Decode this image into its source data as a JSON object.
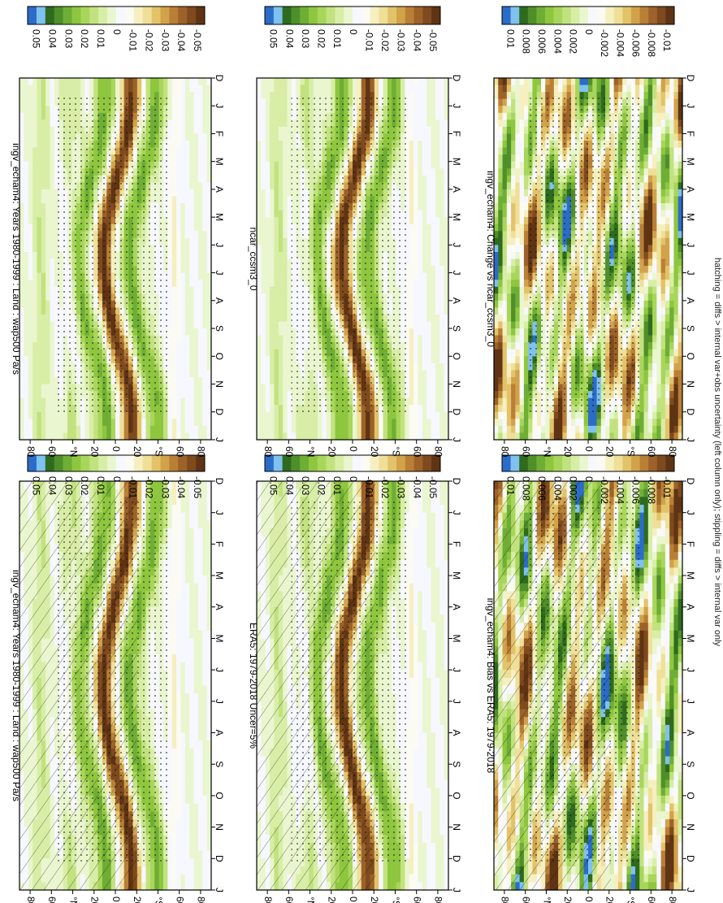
{
  "figure": {
    "footer": "hatching = diffs > internal var+obs uncertainty (left column only); stippling = diffs > internal var only"
  },
  "palettes": {
    "brbg": [
      "#2b6cc8",
      "#7fc1ef",
      "#2e6b1f",
      "#4f8f2a",
      "#6fae35",
      "#8ec63f",
      "#a8d65b",
      "#c2e27f",
      "#d8eea7",
      "#eaf6cf",
      "#f7f8ff",
      "#fbfbf4",
      "#f6efc0",
      "#efdf98",
      "#e3c36a",
      "#d2a24a",
      "#b97f35",
      "#9c6229",
      "#7e4a1e",
      "#5e3414"
    ]
  },
  "chart_data": [
    {
      "type": "heatmap",
      "title": "ingv_echam4: Years 1980-1999 : Land : wap500 Pa/s",
      "x_ticks": [
        "D",
        "J",
        "F",
        "M",
        "A",
        "M",
        "J",
        "J",
        "A",
        "S",
        "O",
        "N",
        "D",
        "J"
      ],
      "y_ticks": [
        "80",
        "60",
        "°N",
        "20",
        "0",
        "20",
        "°S",
        "60",
        "80"
      ],
      "colorbar_ticks": [
        "0.05",
        "0.04",
        "0.03",
        "0.02",
        "0.01",
        "0",
        "-0.01",
        "-0.02",
        "-0.03",
        "-0.04",
        "-0.05"
      ],
      "field": "climatology",
      "hatching": true,
      "stippling": true
    },
    {
      "type": "heatmap",
      "title": "ingv_echam4: Years 1980-1999 : Land : wap500 Pa/s",
      "x_ticks": [
        "D",
        "J",
        "F",
        "M",
        "A",
        "M",
        "J",
        "J",
        "A",
        "S",
        "O",
        "N",
        "D",
        "J"
      ],
      "y_ticks": [
        "80",
        "60",
        "°N",
        "20",
        "0",
        "20",
        "°S",
        "60",
        "80"
      ],
      "colorbar_ticks": [
        "0.05",
        "0.04",
        "0.03",
        "0.02",
        "0.01",
        "0",
        "-0.01",
        "-0.02",
        "-0.03",
        "-0.04",
        "-0.05"
      ],
      "field": "climatology",
      "hatching": false,
      "stippling": true
    },
    {
      "type": "heatmap",
      "title": "ERA5: 1979-2018 Uncer=5%",
      "x_ticks": [
        "D",
        "J",
        "F",
        "M",
        "A",
        "M",
        "J",
        "J",
        "A",
        "S",
        "O",
        "N",
        "D",
        "J"
      ],
      "y_ticks": [
        "80",
        "60",
        "°N",
        "20",
        "0",
        "20",
        "°S",
        "60",
        "80"
      ],
      "colorbar_ticks": [
        "0.05",
        "0.04",
        "0.03",
        "0.02",
        "0.01",
        "0",
        "-0.01",
        "-0.02",
        "-0.03",
        "-0.04",
        "-0.05"
      ],
      "field": "climatology",
      "hatching": true,
      "stippling": true
    },
    {
      "type": "heatmap",
      "title": "ncar_ccsm3_0",
      "x_ticks": [
        "D",
        "J",
        "F",
        "M",
        "A",
        "M",
        "J",
        "J",
        "A",
        "S",
        "O",
        "N",
        "D",
        "J"
      ],
      "y_ticks": [
        "80",
        "60",
        "°N",
        "20",
        "0",
        "20",
        "°S",
        "60",
        "80"
      ],
      "colorbar_ticks": [
        "0.05",
        "0.04",
        "0.03",
        "0.02",
        "0.01",
        "0",
        "-0.01",
        "-0.02",
        "-0.03",
        "-0.04",
        "-0.05"
      ],
      "field": "climatology",
      "hatching": false,
      "stippling": true
    },
    {
      "type": "heatmap",
      "title": "ingv_echam4: Bias vs ERA5: 1979-2018",
      "x_ticks": [
        "D",
        "J",
        "F",
        "M",
        "A",
        "M",
        "J",
        "J",
        "A",
        "S",
        "O",
        "N",
        "D",
        "J"
      ],
      "y_ticks": [
        "80",
        "60",
        "°N",
        "20",
        "0",
        "20",
        "°S",
        "60",
        "80"
      ],
      "colorbar_ticks": [
        "0.01",
        "0.008",
        "0.006",
        "0.004",
        "0.002",
        "0",
        "-0.002",
        "-0.004",
        "-0.006",
        "-0.008",
        "-0.01"
      ],
      "field": "difference",
      "hatching": true,
      "stippling": true
    },
    {
      "type": "heatmap",
      "title": "ingv_echam4: Change vs ncar_ccsm3_0",
      "x_ticks": [
        "D",
        "J",
        "F",
        "M",
        "A",
        "M",
        "J",
        "J",
        "A",
        "S",
        "O",
        "N",
        "D",
        "J"
      ],
      "y_ticks": [
        "80",
        "60",
        "°N",
        "20",
        "0",
        "20",
        "°S",
        "60",
        "80"
      ],
      "colorbar_ticks": [
        "0.01",
        "0.008",
        "0.006",
        "0.004",
        "0.002",
        "0",
        "-0.002",
        "-0.004",
        "-0.006",
        "-0.008",
        "-0.01"
      ],
      "field": "difference",
      "hatching": false,
      "stippling": true
    }
  ]
}
